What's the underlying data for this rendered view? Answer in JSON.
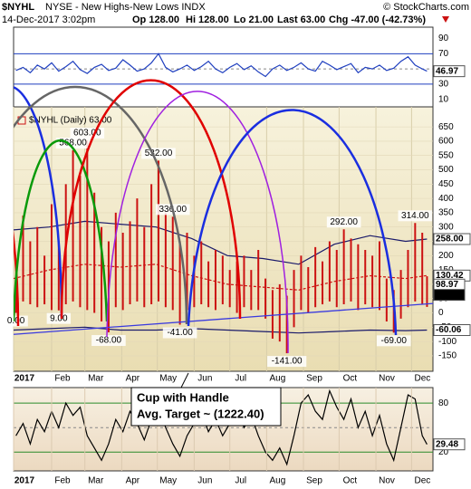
{
  "header": {
    "symbol": "$NYHL",
    "description": "NYSE - New Highs-New Lows INDX",
    "credit": "© StockCharts.com",
    "date": "14-Dec-2017 3:02pm",
    "op": "Op 128.00",
    "hi": "Hi 128.00",
    "lo": "Lo 21.00",
    "last": "Last 63.00",
    "chg": "Chg -47.00 (-42.73%)"
  },
  "chart_data": [
    {
      "type": "line",
      "color": "#1f3fbf",
      "ylim": [
        0,
        105
      ],
      "yticks": [
        90,
        70,
        30,
        10
      ],
      "reference_lines": [
        70,
        50,
        30
      ],
      "last_label": "46.97",
      "values": [
        48,
        52,
        45,
        55,
        50,
        58,
        47,
        53,
        60,
        49,
        44,
        52,
        56,
        48,
        51,
        62,
        55,
        47,
        50,
        58,
        70,
        52,
        46,
        50,
        55,
        48,
        53,
        60,
        50,
        45,
        52,
        57,
        49,
        54,
        46,
        40,
        50,
        55,
        48,
        52,
        58,
        50,
        47,
        60,
        55,
        49,
        53,
        57,
        45,
        52,
        50,
        55,
        48,
        51,
        60,
        66,
        55,
        50,
        46.97
      ]
    },
    {
      "type": "range-bar",
      "title": "$NYHL (Daily) 63.00",
      "color": "#cc1111",
      "ylim": [
        -204,
        720
      ],
      "xlim": [
        0,
        353
      ],
      "yticks": [
        650,
        600,
        550,
        500,
        450,
        400,
        350,
        300,
        250,
        200,
        150,
        100,
        50,
        0,
        -50,
        -100,
        -150
      ],
      "xticks": [
        {
          "value": 0,
          "label": "2017"
        },
        {
          "value": 32,
          "label": "Feb"
        },
        {
          "value": 60,
          "label": "Mar"
        },
        {
          "value": 91,
          "label": "Apr"
        },
        {
          "value": 121,
          "label": "May"
        },
        {
          "value": 152,
          "label": "Jun"
        },
        {
          "value": 182,
          "label": "Jul"
        },
        {
          "value": 213,
          "label": "Aug"
        },
        {
          "value": 244,
          "label": "Sep"
        },
        {
          "value": 274,
          "label": "Oct"
        },
        {
          "value": 305,
          "label": "Nov"
        },
        {
          "value": 335,
          "label": "Dec"
        }
      ],
      "x": [
        2,
        8,
        14,
        20,
        26,
        32,
        38,
        44,
        50,
        56,
        62,
        68,
        74,
        80,
        86,
        92,
        98,
        104,
        110,
        116,
        122,
        128,
        134,
        140,
        146,
        152,
        158,
        164,
        170,
        176,
        182,
        188,
        194,
        200,
        206,
        212,
        218,
        224,
        230,
        236,
        242,
        248,
        254,
        260,
        266,
        272,
        278,
        284,
        290,
        296,
        302,
        308,
        314,
        320,
        326,
        332,
        338,
        344,
        348
      ],
      "high": [
        120,
        340,
        250,
        300,
        200,
        380,
        250,
        450,
        568,
        480,
        603,
        420,
        300,
        250,
        350,
        280,
        320,
        400,
        300,
        450,
        532,
        350,
        336,
        250,
        280,
        200,
        250,
        180,
        220,
        200,
        150,
        180,
        200,
        150,
        220,
        120,
        80,
        100,
        60,
        150,
        200,
        160,
        230,
        180,
        250,
        220,
        292,
        260,
        240,
        220,
        200,
        250,
        120,
        80,
        150,
        220,
        314,
        280,
        128
      ],
      "low": [
        0,
        40,
        30,
        20,
        30,
        10,
        9,
        30,
        40,
        20,
        10,
        0,
        -30,
        -68,
        20,
        10,
        30,
        40,
        20,
        30,
        40,
        20,
        10,
        -41,
        10,
        20,
        30,
        20,
        10,
        30,
        20,
        0,
        20,
        10,
        10,
        -20,
        -90,
        -100,
        -141,
        -50,
        10,
        0,
        20,
        30,
        40,
        20,
        30,
        40,
        10,
        30,
        20,
        10,
        -30,
        -69,
        -20,
        20,
        40,
        30,
        21
      ],
      "bands": {
        "x": [
          0,
          30,
          60,
          90,
          120,
          150,
          180,
          210,
          240,
          270,
          300,
          330,
          348
        ],
        "upper": [
          290,
          300,
          320,
          310,
          300,
          260,
          200,
          190,
          170,
          240,
          270,
          250,
          258
        ],
        "middle": [
          120,
          150,
          170,
          160,
          170,
          130,
          100,
          90,
          80,
          110,
          130,
          120,
          130.42
        ],
        "lower": [
          -60,
          -55,
          -50,
          -60,
          -60,
          -55,
          -60,
          -65,
          -70,
          -65,
          -60,
          -62,
          -60.06
        ]
      },
      "trendline": {
        "x": [
          0,
          353
        ],
        "values": [
          -75,
          33
        ]
      },
      "point_labels": [
        {
          "x": 2,
          "value": 0,
          "label": "0.00"
        },
        {
          "x": 38,
          "value": 9,
          "label": "9.00"
        },
        {
          "x": 50,
          "value": 568,
          "label": "568.00"
        },
        {
          "x": 62,
          "value": 603,
          "label": "603.00"
        },
        {
          "x": 80,
          "value": -68,
          "label": "-68.00"
        },
        {
          "x": 122,
          "value": 532,
          "label": "532.00"
        },
        {
          "x": 134,
          "value": 336,
          "label": "336.00"
        },
        {
          "x": 140,
          "value": -41,
          "label": "-41.00"
        },
        {
          "x": 230,
          "value": -141,
          "label": "-141.00"
        },
        {
          "x": 278,
          "value": 292,
          "label": "292.00"
        },
        {
          "x": 320,
          "value": -69,
          "label": "-69.00"
        },
        {
          "x": 338,
          "value": 314,
          "label": "314.00"
        }
      ],
      "right_labels": [
        {
          "value": 258,
          "label": "258.00",
          "bg": "#ffffff",
          "fg": "#000000"
        },
        {
          "value": 130.42,
          "label": "130.42",
          "bg": "#ffffff",
          "fg": "#cc1111"
        },
        {
          "value": 98.97,
          "label": "98.97",
          "bg": "#ffffff",
          "fg": "#000000"
        },
        {
          "value": 63,
          "label": "63.00",
          "bg": "#000000",
          "fg": "#ffffff"
        },
        {
          "value": -60.06,
          "label": "-60.06",
          "bg": "#ffffff",
          "fg": "#000000"
        }
      ],
      "annotation": [
        "Cup with Handle",
        "Avg. Target ~ (1222.40)"
      ]
    },
    {
      "type": "line",
      "color": "#000000",
      "ylim": [
        -3,
        99
      ],
      "yticks": [
        80,
        20
      ],
      "reference_lines": [
        80,
        50,
        20
      ],
      "last_label": "29.48",
      "values": [
        40,
        55,
        30,
        60,
        45,
        70,
        50,
        80,
        65,
        75,
        40,
        25,
        10,
        30,
        60,
        45,
        70,
        55,
        35,
        60,
        75,
        50,
        30,
        15,
        40,
        55,
        70,
        45,
        60,
        40,
        55,
        70,
        50,
        65,
        40,
        20,
        10,
        25,
        5,
        40,
        80,
        90,
        70,
        60,
        95,
        75,
        60,
        85,
        50,
        70,
        40,
        65,
        30,
        10,
        50,
        90,
        85,
        40,
        29.48
      ]
    }
  ]
}
